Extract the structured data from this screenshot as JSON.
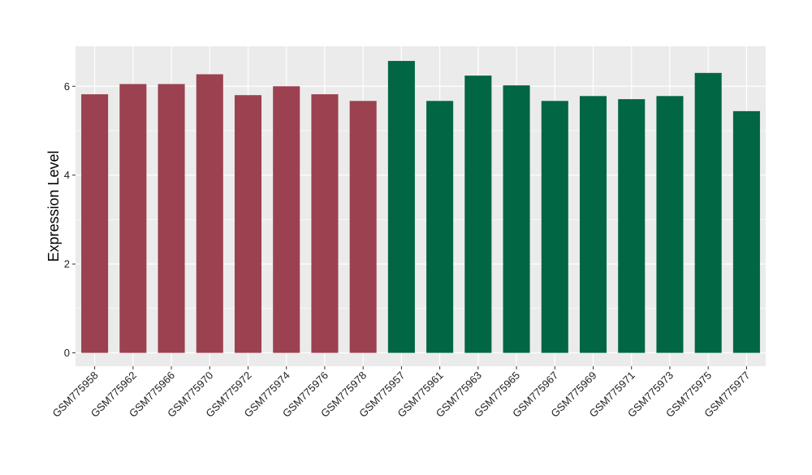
{
  "chart_data": {
    "type": "bar",
    "title": "",
    "xlabel": "",
    "ylabel": "Expression Level",
    "ylim": [
      -0.3,
      6.9
    ],
    "yticks": [
      0,
      2,
      4,
      6
    ],
    "grid": true,
    "legend": "none",
    "panel_background": "#ebebeb",
    "grid_color": "#ffffff",
    "categories": [
      "GSM775958",
      "GSM775962",
      "GSM775966",
      "GSM775970",
      "GSM775972",
      "GSM775974",
      "GSM775976",
      "GSM775978",
      "GSM775957",
      "GSM775961",
      "GSM775963",
      "GSM775965",
      "GSM775967",
      "GSM775969",
      "GSM775971",
      "GSM775973",
      "GSM775975",
      "GSM775977"
    ],
    "values": [
      5.82,
      6.05,
      6.05,
      6.27,
      5.8,
      6.0,
      5.82,
      5.67,
      6.57,
      5.67,
      6.24,
      6.02,
      5.67,
      5.78,
      5.71,
      5.78,
      6.3,
      5.44
    ],
    "colors": [
      "#9b4150",
      "#9b4150",
      "#9b4150",
      "#9b4150",
      "#9b4150",
      "#9b4150",
      "#9b4150",
      "#9b4150",
      "#006644",
      "#006644",
      "#006644",
      "#006644",
      "#006644",
      "#006644",
      "#006644",
      "#006644",
      "#006644",
      "#006644"
    ]
  }
}
